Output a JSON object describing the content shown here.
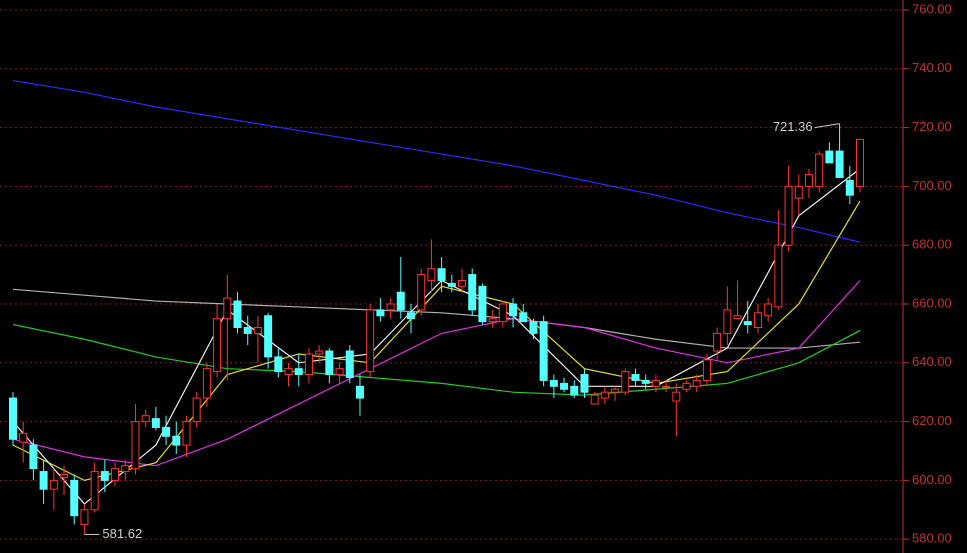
{
  "chart_data": {
    "type": "candlestick",
    "up_color": "#ff3232",
    "down_color": "#54ffff",
    "grid": true,
    "grid_color": "#8b1a1a",
    "axis_color": "#c03030",
    "ylim": [
      575.3,
      763.4
    ],
    "yticks": [
      {
        "value": 580,
        "label": "580.00"
      },
      {
        "value": 600,
        "label": "600.00"
      },
      {
        "value": 620,
        "label": "620.00"
      },
      {
        "value": 640,
        "label": "640.00"
      },
      {
        "value": 660,
        "label": "660.00"
      },
      {
        "value": 680,
        "label": "680.00"
      },
      {
        "value": 700,
        "label": "700.00"
      },
      {
        "value": 720,
        "label": "720.00"
      },
      {
        "value": 740,
        "label": "740.00"
      },
      {
        "value": 760,
        "label": "760.00"
      }
    ],
    "ohlc": [
      [
        628,
        630,
        612,
        614
      ],
      [
        613,
        620,
        606,
        616
      ],
      [
        612,
        614,
        600,
        604
      ],
      [
        603,
        607,
        592,
        597
      ],
      [
        597,
        604,
        590,
        600
      ],
      [
        601,
        605,
        595,
        602
      ],
      [
        600,
        602,
        585,
        588
      ],
      [
        585,
        592,
        581.62,
        590
      ],
      [
        590,
        606,
        589,
        603
      ],
      [
        603,
        607,
        596,
        600
      ],
      [
        600,
        606,
        598,
        604
      ],
      [
        603,
        607,
        600,
        605
      ],
      [
        604,
        626,
        602,
        620
      ],
      [
        620,
        624,
        618,
        622
      ],
      [
        621,
        625,
        617,
        618
      ],
      [
        618,
        622,
        612,
        615
      ],
      [
        615,
        620,
        609,
        612
      ],
      [
        612,
        622,
        608,
        620
      ],
      [
        620,
        630,
        618,
        628
      ],
      [
        628,
        640,
        625,
        638
      ],
      [
        637,
        660,
        635,
        655
      ],
      [
        655,
        670,
        634,
        662
      ],
      [
        661,
        664,
        650,
        652
      ],
      [
        652,
        656,
        646,
        650
      ],
      [
        650,
        656,
        640,
        652
      ],
      [
        656,
        657,
        638,
        642
      ],
      [
        642,
        645,
        635,
        637
      ],
      [
        636,
        640,
        632,
        638
      ],
      [
        638,
        643,
        632,
        636
      ],
      [
        636,
        645,
        633,
        643
      ],
      [
        643,
        646,
        640,
        644
      ],
      [
        644,
        645,
        633,
        636
      ],
      [
        636,
        640,
        633,
        638
      ],
      [
        644,
        646,
        633,
        635
      ],
      [
        632,
        636,
        622,
        628
      ],
      [
        637,
        660,
        635,
        658
      ],
      [
        658,
        662,
        654,
        656
      ],
      [
        658,
        662,
        655,
        660
      ],
      [
        664,
        676,
        655,
        658
      ],
      [
        657,
        660,
        650,
        655
      ],
      [
        658,
        672,
        656,
        670
      ],
      [
        668,
        682,
        664,
        672
      ],
      [
        672,
        676,
        664,
        668
      ],
      [
        667,
        670,
        664,
        666
      ],
      [
        666,
        672,
        664,
        668
      ],
      [
        670,
        672,
        656,
        658
      ],
      [
        666,
        667,
        653,
        654
      ],
      [
        654,
        658,
        652,
        655
      ],
      [
        654,
        661,
        652,
        660
      ],
      [
        660,
        662,
        652,
        656
      ],
      [
        657,
        660,
        654,
        654
      ],
      [
        654,
        655,
        648,
        650
      ],
      [
        654,
        656,
        632,
        634
      ],
      [
        634,
        636,
        628,
        632
      ],
      [
        633,
        635,
        630,
        631
      ],
      [
        632,
        634,
        628,
        629
      ],
      [
        636,
        638,
        628,
        630
      ],
      [
        626,
        630,
        626,
        629
      ],
      [
        628,
        632,
        626,
        630
      ],
      [
        630,
        632,
        627,
        631
      ],
      [
        630,
        638,
        629,
        637
      ],
      [
        636,
        638,
        632,
        634
      ],
      [
        634,
        636,
        631,
        633
      ],
      [
        632,
        636,
        630,
        634
      ],
      [
        632,
        634,
        630,
        632
      ],
      [
        627,
        633,
        615,
        630
      ],
      [
        631,
        634,
        630,
        633
      ],
      [
        632,
        636,
        630,
        634
      ],
      [
        634,
        643,
        632,
        641
      ],
      [
        644,
        652,
        641,
        650
      ],
      [
        650,
        666,
        646,
        658
      ],
      [
        655,
        668,
        655,
        656
      ],
      [
        654,
        661,
        650,
        653
      ],
      [
        652,
        660,
        650,
        657
      ],
      [
        656,
        662,
        654,
        660
      ],
      [
        659,
        692,
        658,
        680
      ],
      [
        680,
        707,
        678,
        700
      ],
      [
        696,
        704,
        690,
        700
      ],
      [
        700,
        706,
        696,
        704
      ],
      [
        700,
        712,
        698,
        711
      ],
      [
        712,
        715,
        708,
        708
      ],
      [
        712,
        721.36,
        703,
        703
      ],
      [
        702,
        707,
        694,
        697
      ],
      [
        700,
        716,
        698,
        716
      ]
    ],
    "lines": [
      {
        "color": "#2a2aff",
        "x": [
          0,
          7,
          14,
          21,
          28,
          35,
          42,
          49,
          56,
          63,
          70,
          77,
          83
        ],
        "values": [
          736,
          732,
          727,
          723,
          719,
          715,
          711,
          707,
          702,
          697,
          691,
          686,
          681
        ]
      },
      {
        "color": "#b0b0b0",
        "x": [
          0,
          7,
          14,
          21,
          28,
          35,
          42,
          49,
          56,
          63,
          70,
          77,
          83
        ],
        "values": [
          665,
          663,
          661,
          660,
          659,
          658,
          657,
          655,
          652,
          648,
          645,
          645,
          647
        ]
      },
      {
        "color": "#22cc22",
        "x": [
          0,
          7,
          14,
          21,
          28,
          35,
          42,
          49,
          56,
          63,
          70,
          77,
          83
        ],
        "values": [
          653,
          648,
          642,
          638,
          637,
          635,
          633,
          630,
          629,
          631,
          633,
          640,
          651
        ]
      },
      {
        "color": "#e030e0",
        "x": [
          0,
          7,
          14,
          21,
          28,
          35,
          42,
          49,
          56,
          63,
          70,
          77,
          83
        ],
        "values": [
          614,
          608,
          605,
          614,
          626,
          638,
          650,
          655,
          652,
          645,
          640,
          645,
          668
        ]
      },
      {
        "color": "#e0e020",
        "x": [
          0,
          7,
          14,
          21,
          28,
          35,
          42,
          49,
          56,
          63,
          70,
          77,
          83
        ],
        "values": [
          612,
          600,
          606,
          636,
          643,
          640,
          666,
          660,
          638,
          633,
          637,
          660,
          695
        ]
      },
      {
        "color": "#f0f0f0",
        "x": [
          0,
          7,
          14,
          21,
          28,
          35,
          42,
          49,
          56,
          63,
          70,
          77,
          83
        ],
        "values": [
          620,
          592,
          612,
          658,
          640,
          643,
          668,
          656,
          632,
          632,
          645,
          690,
          706
        ]
      }
    ],
    "annotations": [
      {
        "text": "721.36",
        "x": 81,
        "value": 721.36,
        "side": "left"
      },
      {
        "text": "581.62",
        "x": 7,
        "value": 581.62,
        "side": "right"
      }
    ]
  }
}
